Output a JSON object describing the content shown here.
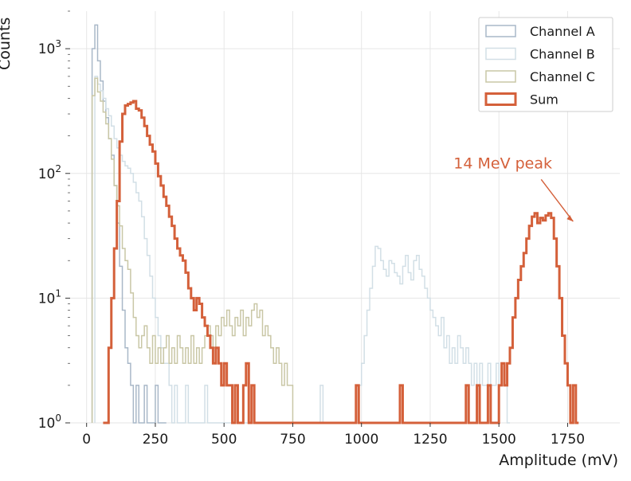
{
  "chart_data": {
    "type": "step-histogram",
    "xlabel": "Amplitude (mV)",
    "ylabel": "Counts",
    "yscale": "log",
    "xlim": [
      -60,
      1940
    ],
    "ylim": [
      1,
      2000
    ],
    "x_ticks": [
      0,
      250,
      500,
      750,
      1000,
      1250,
      1500,
      1750
    ],
    "y_ticks": [
      1,
      10,
      100,
      1000
    ],
    "y_tick_labels": [
      {
        "base": "10",
        "exp": "0"
      },
      {
        "base": "10",
        "exp": "1"
      },
      {
        "base": "10",
        "exp": "2"
      },
      {
        "base": "10",
        "exp": "3"
      }
    ],
    "grid": true,
    "legend_position": "top-right",
    "bin_width": 10,
    "series": [
      {
        "name": "Channel A",
        "color": "#a9b8c8",
        "line_width": 1.5,
        "bins": [
          [
            20,
            1000
          ],
          [
            30,
            1550
          ],
          [
            40,
            800
          ],
          [
            50,
            550
          ],
          [
            60,
            380
          ],
          [
            70,
            280
          ],
          [
            80,
            190
          ],
          [
            90,
            140
          ],
          [
            100,
            80
          ],
          [
            110,
            40
          ],
          [
            120,
            18
          ],
          [
            130,
            8
          ],
          [
            140,
            4
          ],
          [
            150,
            3
          ],
          [
            160,
            2
          ],
          [
            170,
            1
          ],
          [
            180,
            2
          ],
          [
            190,
            1
          ],
          [
            210,
            2
          ],
          [
            220,
            1
          ],
          [
            250,
            2
          ],
          [
            280,
            1
          ]
        ]
      },
      {
        "name": "Channel B",
        "color": "#d2dfe6",
        "line_width": 1.5,
        "bins": [
          [
            30,
            600
          ],
          [
            40,
            520
          ],
          [
            50,
            460
          ],
          [
            60,
            400
          ],
          [
            70,
            330
          ],
          [
            80,
            290
          ],
          [
            90,
            240
          ],
          [
            100,
            190
          ],
          [
            110,
            160
          ],
          [
            120,
            140
          ],
          [
            130,
            125
          ],
          [
            140,
            115
          ],
          [
            150,
            110
          ],
          [
            160,
            100
          ],
          [
            170,
            85
          ],
          [
            180,
            70
          ],
          [
            190,
            60
          ],
          [
            200,
            45
          ],
          [
            210,
            30
          ],
          [
            220,
            22
          ],
          [
            230,
            15
          ],
          [
            240,
            10
          ],
          [
            250,
            7
          ],
          [
            260,
            5
          ],
          [
            270,
            4
          ],
          [
            280,
            3
          ],
          [
            290,
            3
          ],
          [
            300,
            2
          ],
          [
            320,
            2
          ],
          [
            340,
            1
          ],
          [
            360,
            2
          ],
          [
            400,
            1
          ],
          [
            430,
            2
          ],
          [
            450,
            1
          ],
          [
            850,
            2
          ],
          [
            990,
            2
          ],
          [
            1000,
            3
          ],
          [
            1010,
            5
          ],
          [
            1020,
            8
          ],
          [
            1030,
            12
          ],
          [
            1040,
            18
          ],
          [
            1050,
            26
          ],
          [
            1060,
            25
          ],
          [
            1070,
            20
          ],
          [
            1080,
            17
          ],
          [
            1090,
            15
          ],
          [
            1100,
            20
          ],
          [
            1110,
            19
          ],
          [
            1120,
            16
          ],
          [
            1130,
            15
          ],
          [
            1140,
            13
          ],
          [
            1150,
            18
          ],
          [
            1160,
            22
          ],
          [
            1170,
            16
          ],
          [
            1180,
            14
          ],
          [
            1190,
            20
          ],
          [
            1200,
            22
          ],
          [
            1210,
            17
          ],
          [
            1220,
            15
          ],
          [
            1230,
            12
          ],
          [
            1240,
            10
          ],
          [
            1250,
            8
          ],
          [
            1260,
            7
          ],
          [
            1270,
            6
          ],
          [
            1280,
            5
          ],
          [
            1290,
            7
          ],
          [
            1300,
            4
          ],
          [
            1310,
            5
          ],
          [
            1320,
            3
          ],
          [
            1330,
            4
          ],
          [
            1340,
            3
          ],
          [
            1350,
            5
          ],
          [
            1360,
            4
          ],
          [
            1370,
            3
          ],
          [
            1380,
            4
          ],
          [
            1390,
            3
          ],
          [
            1400,
            2
          ],
          [
            1410,
            3
          ],
          [
            1420,
            2
          ],
          [
            1430,
            3
          ],
          [
            1440,
            2
          ],
          [
            1450,
            2
          ],
          [
            1460,
            3
          ],
          [
            1470,
            2
          ],
          [
            1480,
            2
          ],
          [
            1490,
            3
          ],
          [
            1500,
            2
          ],
          [
            1510,
            2
          ],
          [
            1520,
            2
          ],
          [
            1530,
            1
          ]
        ]
      },
      {
        "name": "Channel C",
        "color": "#c9c7a6",
        "line_width": 1.5,
        "bins": [
          [
            20,
            420
          ],
          [
            30,
            580
          ],
          [
            40,
            450
          ],
          [
            50,
            380
          ],
          [
            60,
            310
          ],
          [
            70,
            250
          ],
          [
            80,
            190
          ],
          [
            90,
            130
          ],
          [
            100,
            80
          ],
          [
            110,
            55
          ],
          [
            120,
            38
          ],
          [
            130,
            25
          ],
          [
            140,
            20
          ],
          [
            150,
            17
          ],
          [
            160,
            11
          ],
          [
            170,
            7
          ],
          [
            180,
            5
          ],
          [
            190,
            4
          ],
          [
            200,
            5
          ],
          [
            210,
            6
          ],
          [
            220,
            4
          ],
          [
            230,
            3
          ],
          [
            240,
            5
          ],
          [
            250,
            3
          ],
          [
            260,
            4
          ],
          [
            270,
            3
          ],
          [
            280,
            4
          ],
          [
            290,
            5
          ],
          [
            300,
            3
          ],
          [
            310,
            4
          ],
          [
            320,
            3
          ],
          [
            330,
            5
          ],
          [
            340,
            4
          ],
          [
            350,
            3
          ],
          [
            360,
            4
          ],
          [
            370,
            3
          ],
          [
            380,
            5
          ],
          [
            390,
            3
          ],
          [
            400,
            4
          ],
          [
            410,
            3
          ],
          [
            420,
            4
          ],
          [
            430,
            5
          ],
          [
            440,
            6
          ],
          [
            450,
            5
          ],
          [
            460,
            4
          ],
          [
            470,
            6
          ],
          [
            480,
            5
          ],
          [
            490,
            7
          ],
          [
            500,
            6
          ],
          [
            510,
            8
          ],
          [
            520,
            6
          ],
          [
            530,
            5
          ],
          [
            540,
            7
          ],
          [
            550,
            6
          ],
          [
            560,
            8
          ],
          [
            570,
            5
          ],
          [
            580,
            7
          ],
          [
            590,
            6
          ],
          [
            600,
            8
          ],
          [
            610,
            9
          ],
          [
            620,
            7
          ],
          [
            630,
            8
          ],
          [
            640,
            5
          ],
          [
            650,
            6
          ],
          [
            660,
            5
          ],
          [
            670,
            4
          ],
          [
            680,
            3
          ],
          [
            690,
            4
          ],
          [
            700,
            3
          ],
          [
            710,
            2
          ],
          [
            720,
            3
          ],
          [
            730,
            2
          ],
          [
            740,
            2
          ],
          [
            750,
            1
          ],
          [
            760,
            1
          ]
        ]
      },
      {
        "name": "Sum",
        "color": "#d4603a",
        "line_width": 3,
        "bins": [
          [
            60,
            1
          ],
          [
            70,
            1
          ],
          [
            80,
            4
          ],
          [
            90,
            10
          ],
          [
            100,
            25
          ],
          [
            110,
            60
          ],
          [
            120,
            180
          ],
          [
            130,
            300
          ],
          [
            140,
            350
          ],
          [
            150,
            360
          ],
          [
            160,
            370
          ],
          [
            170,
            380
          ],
          [
            180,
            330
          ],
          [
            190,
            320
          ],
          [
            200,
            280
          ],
          [
            210,
            240
          ],
          [
            220,
            200
          ],
          [
            230,
            170
          ],
          [
            240,
            150
          ],
          [
            250,
            120
          ],
          [
            260,
            95
          ],
          [
            270,
            80
          ],
          [
            280,
            65
          ],
          [
            290,
            55
          ],
          [
            300,
            45
          ],
          [
            310,
            38
          ],
          [
            320,
            30
          ],
          [
            330,
            25
          ],
          [
            340,
            22
          ],
          [
            350,
            20
          ],
          [
            360,
            16
          ],
          [
            370,
            12
          ],
          [
            380,
            10
          ],
          [
            390,
            8
          ],
          [
            400,
            10
          ],
          [
            410,
            9
          ],
          [
            420,
            7
          ],
          [
            430,
            6
          ],
          [
            440,
            5
          ],
          [
            450,
            4
          ],
          [
            460,
            3
          ],
          [
            470,
            4
          ],
          [
            480,
            3
          ],
          [
            490,
            2
          ],
          [
            500,
            3
          ],
          [
            510,
            2
          ],
          [
            520,
            2
          ],
          [
            530,
            1
          ],
          [
            540,
            2
          ],
          [
            550,
            1
          ],
          [
            570,
            2
          ],
          [
            580,
            3
          ],
          [
            600,
            2
          ],
          [
            610,
            1
          ],
          [
            980,
            2
          ],
          [
            990,
            1
          ],
          [
            1140,
            2
          ],
          [
            1150,
            1
          ],
          [
            1380,
            2
          ],
          [
            1390,
            1
          ],
          [
            1420,
            2
          ],
          [
            1430,
            1
          ],
          [
            1460,
            2
          ],
          [
            1470,
            1
          ],
          [
            1500,
            2
          ],
          [
            1510,
            3
          ],
          [
            1520,
            2
          ],
          [
            1530,
            3
          ],
          [
            1540,
            4
          ],
          [
            1550,
            7
          ],
          [
            1560,
            10
          ],
          [
            1570,
            14
          ],
          [
            1580,
            18
          ],
          [
            1590,
            23
          ],
          [
            1600,
            30
          ],
          [
            1610,
            38
          ],
          [
            1620,
            45
          ],
          [
            1630,
            48
          ],
          [
            1640,
            40
          ],
          [
            1650,
            44
          ],
          [
            1660,
            42
          ],
          [
            1670,
            46
          ],
          [
            1680,
            48
          ],
          [
            1690,
            44
          ],
          [
            1700,
            30
          ],
          [
            1710,
            18
          ],
          [
            1720,
            10
          ],
          [
            1730,
            5
          ],
          [
            1740,
            3
          ],
          [
            1750,
            2
          ],
          [
            1760,
            1
          ],
          [
            1770,
            2
          ],
          [
            1780,
            1
          ]
        ]
      }
    ],
    "annotations": [
      {
        "text": "14 MeV peak",
        "point_x": 1770,
        "point_y": 45,
        "text_x": 1335,
        "text_y": 110,
        "color": "#d4603a"
      }
    ]
  }
}
